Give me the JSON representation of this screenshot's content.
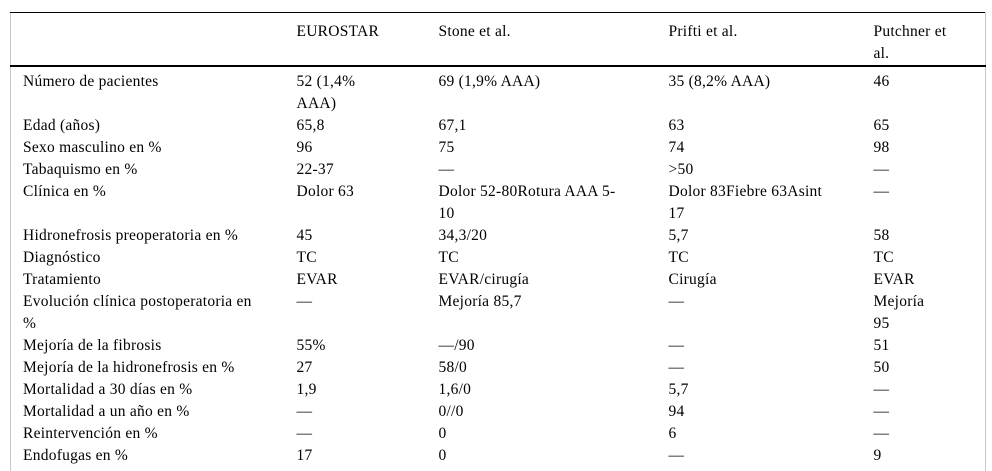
{
  "colors": {
    "text": "#000000",
    "background": "#ffffff",
    "rule": "#000000",
    "side_rule": "#c9c9c9"
  },
  "table": {
    "columns": [
      "",
      "EUROSTAR",
      "Stone et al.",
      "Prifti et al.",
      "Putchner et\nal."
    ],
    "rows": [
      {
        "label": "Número de pacientes",
        "values": [
          "52 (1,4%\nAAA)",
          "69 (1,9% AAA)",
          "35 (8,2% AAA)",
          "46"
        ]
      },
      {
        "label": "Edad (años)",
        "values": [
          "65,8",
          "67,1",
          "63",
          "65"
        ]
      },
      {
        "label": "Sexo masculino en %",
        "values": [
          "96",
          "75",
          "74",
          "98"
        ]
      },
      {
        "label": "Tabaquismo en %",
        "values": [
          "22-37",
          "—",
          ">50",
          "—"
        ]
      },
      {
        "label": "Clínica en %",
        "values": [
          "Dolor 63",
          "Dolor 52-80Rotura AAA 5-\n10",
          "Dolor 83Fiebre 63Asint\n17",
          "—"
        ]
      },
      {
        "label": "Hidronefrosis preoperatoria en %",
        "values": [
          "45",
          "34,3/20",
          "5,7",
          "58"
        ]
      },
      {
        "label": "Diagnóstico",
        "values": [
          "TC",
          "TC",
          "TC",
          "TC"
        ]
      },
      {
        "label": "Tratamiento",
        "values": [
          "EVAR",
          "EVAR/cirugía",
          "Cirugía",
          "EVAR"
        ]
      },
      {
        "label": "Evolución clínica postoperatoria en\n%",
        "values": [
          "—",
          "Mejoría 85,7",
          "—",
          "Mejoría\n95"
        ]
      },
      {
        "label": "Mejoría de la fibrosis",
        "values": [
          "55%",
          "—/90",
          "—",
          "51"
        ]
      },
      {
        "label": "Mejoría de la hidronefrosis en %",
        "values": [
          "27",
          "58/0",
          "—",
          "50"
        ]
      },
      {
        "label": "Mortalidad a 30 días en %",
        "values": [
          "1,9",
          "1,6/0",
          "5,7",
          "—"
        ]
      },
      {
        "label": "Mortalidad a un año en %",
        "values": [
          "—",
          "0//0",
          "94",
          "—"
        ]
      },
      {
        "label": "Reintervención en %",
        "values": [
          "—",
          "0",
          "6",
          "—"
        ]
      },
      {
        "label": "Endofugas en %",
        "values": [
          "17",
          "0",
          "—",
          "9"
        ]
      }
    ]
  }
}
